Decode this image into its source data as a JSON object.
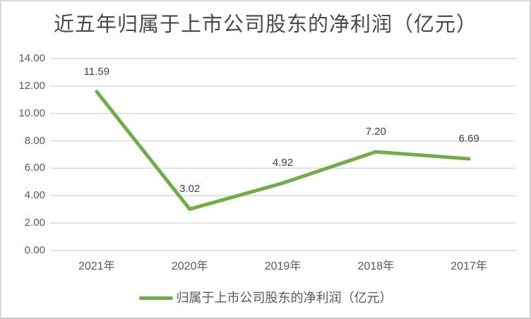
{
  "chart_data": {
    "type": "line",
    "title": "近五年归属于上市公司股东的净利润（亿元）",
    "categories": [
      "2021年",
      "2020年",
      "2019年",
      "2018年",
      "2017年"
    ],
    "series": [
      {
        "name": "归属于上市公司股东的净利润（亿元）",
        "values": [
          11.59,
          3.02,
          4.92,
          7.2,
          6.69
        ]
      }
    ],
    "data_labels": [
      "11.59",
      "3.02",
      "4.92",
      "7.20",
      "6.69"
    ],
    "y_ticks": [
      "14.00",
      "12.00",
      "10.00",
      "8.00",
      "6.00",
      "4.00",
      "2.00",
      "0.00"
    ],
    "ylim": [
      0,
      14
    ],
    "y_step": 2,
    "grid": true,
    "legend": {
      "position": "bottom",
      "label": "归属于上市公司股东的净利润（亿元）"
    },
    "colors": {
      "line": "#70AD47",
      "gridline": "#D9D9D9",
      "axis_text": "#595959",
      "data_label_text": "#404040",
      "title_text": "#4A4A4A",
      "frame_border": "#D9D9D9"
    }
  }
}
